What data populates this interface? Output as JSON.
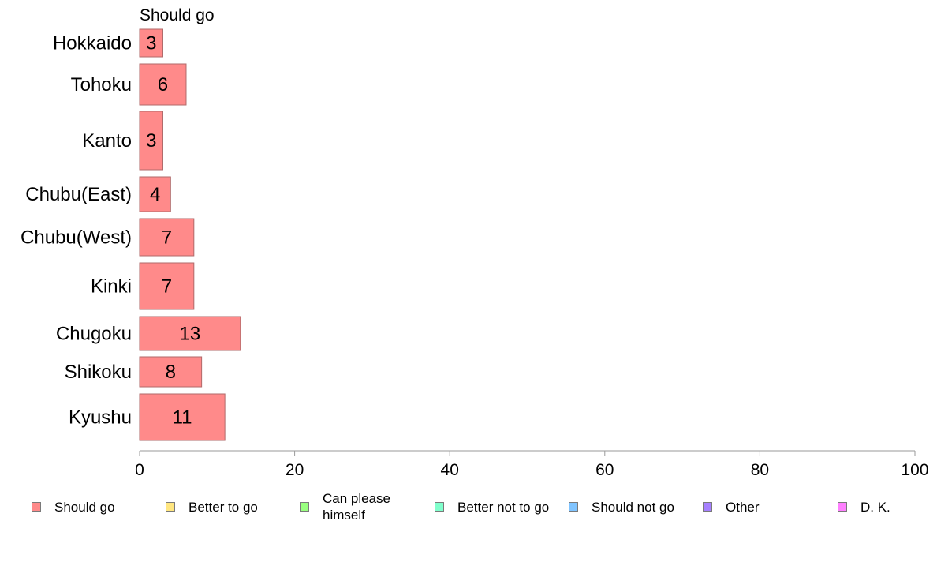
{
  "chart_data": {
    "type": "bar",
    "orientation": "horizontal",
    "stacked": true,
    "series_label": "Should go",
    "categories": [
      "Hokkaido",
      "Tohoku",
      "Kanto",
      "Chubu(East)",
      "Chubu(West)",
      "Kinki",
      "Chugoku",
      "Shikoku",
      "Kyushu"
    ],
    "series": [
      {
        "name": "Should go",
        "color": "#ff8a8a",
        "values": [
          3,
          6,
          3,
          4,
          7,
          7,
          13,
          8,
          11
        ],
        "data_labels": [
          "3",
          "6",
          "3",
          "4",
          "7",
          "7",
          "13",
          "8",
          "11"
        ]
      }
    ],
    "xlim": [
      0,
      100
    ],
    "xticks": [
      0,
      20,
      40,
      60,
      80,
      100
    ],
    "xtick_labels": [
      "0",
      "20",
      "40",
      "60",
      "80",
      "100"
    ],
    "grid": false,
    "legend_position": "bottom",
    "legend": [
      {
        "label": "Should go",
        "color": "#ff8a8a"
      },
      {
        "label": "Better to go",
        "color": "#ffe680"
      },
      {
        "label": "Can please himself",
        "color": "#99ff80"
      },
      {
        "label": "Better not to go",
        "color": "#80ffcc"
      },
      {
        "label": "Should not go",
        "color": "#80c4ff"
      },
      {
        "label": "Other",
        "color": "#a680ff"
      },
      {
        "label": "D. K.",
        "color": "#ff80ff"
      }
    ]
  }
}
